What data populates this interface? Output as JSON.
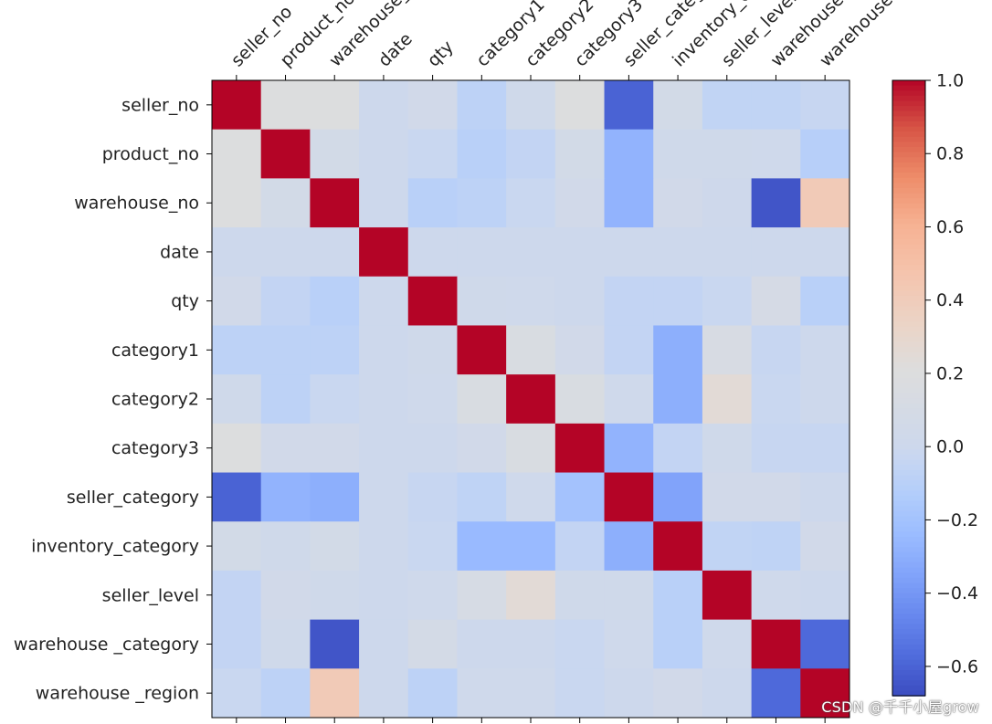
{
  "chart_data": {
    "type": "heatmap",
    "title": "",
    "variables": [
      "seller_no",
      "product_no",
      "warehouse_no",
      "date",
      "qty",
      "category1",
      "category2",
      "category3",
      "seller_category",
      "inventory_category",
      "seller_level",
      "warehouse _category",
      "warehouse _region"
    ],
    "matrix": [
      [
        1.0,
        0.2,
        0.2,
        0.0,
        0.05,
        -0.08,
        0.03,
        0.2,
        -0.6,
        0.07,
        -0.06,
        -0.06,
        -0.03
      ],
      [
        0.2,
        1.0,
        0.07,
        0.0,
        -0.02,
        -0.1,
        -0.05,
        0.07,
        -0.28,
        0.03,
        0.03,
        0.02,
        -0.11
      ],
      [
        0.2,
        0.07,
        1.0,
        0.0,
        -0.1,
        -0.08,
        -0.02,
        0.05,
        -0.28,
        0.05,
        0.01,
        -0.65,
        0.42
      ],
      [
        0.0,
        0.0,
        0.0,
        1.0,
        0.0,
        0.0,
        0.0,
        0.0,
        0.0,
        0.0,
        0.0,
        0.0,
        0.0
      ],
      [
        0.05,
        -0.05,
        -0.1,
        0.0,
        1.0,
        0.03,
        0.02,
        0.0,
        -0.05,
        -0.05,
        -0.02,
        0.1,
        -0.1
      ],
      [
        -0.08,
        -0.08,
        -0.08,
        0.0,
        0.03,
        1.0,
        0.15,
        0.05,
        -0.05,
        -0.3,
        0.13,
        -0.03,
        0.0
      ],
      [
        0.03,
        -0.08,
        -0.02,
        0.0,
        0.02,
        0.15,
        1.0,
        0.15,
        0.02,
        -0.3,
        0.25,
        -0.02,
        0.0
      ],
      [
        0.2,
        0.05,
        0.05,
        0.0,
        0.0,
        0.05,
        0.15,
        1.0,
        -0.28,
        -0.05,
        0.03,
        -0.03,
        -0.03
      ],
      [
        -0.6,
        -0.28,
        -0.3,
        0.0,
        -0.03,
        -0.07,
        0.02,
        -0.2,
        1.0,
        -0.35,
        0.05,
        0.05,
        0.0
      ],
      [
        0.07,
        0.03,
        0.07,
        0.0,
        -0.02,
        -0.25,
        -0.25,
        -0.05,
        -0.3,
        1.0,
        -0.06,
        -0.07,
        0.05
      ],
      [
        -0.05,
        0.05,
        0.03,
        0.0,
        0.02,
        0.12,
        0.25,
        0.03,
        0.03,
        -0.1,
        1.0,
        0.02,
        0.0
      ],
      [
        -0.05,
        0.03,
        -0.65,
        0.0,
        0.08,
        0.0,
        0.0,
        -0.02,
        0.02,
        -0.1,
        0.02,
        1.0,
        -0.58
      ],
      [
        -0.02,
        -0.08,
        0.42,
        0.0,
        -0.08,
        0.02,
        0.02,
        -0.02,
        0.0,
        0.05,
        0.0,
        -0.58,
        1.0
      ]
    ],
    "x_tick_labels": [
      "seller_no",
      "product_no",
      "warehouse_no",
      "date",
      "qty",
      "category1",
      "category2",
      "category3",
      "seller_category",
      "inventory_category",
      "seller_level",
      "warehouse _category",
      "warehouse _region"
    ],
    "y_tick_labels": [
      "seller_no",
      "product_no",
      "warehouse_no",
      "date",
      "qty",
      "category1",
      "category2",
      "category3",
      "seller_category",
      "inventory_category",
      "seller_level",
      "warehouse _category",
      "warehouse _region"
    ],
    "colormap": "coolwarm",
    "colorbar": {
      "vmin": -0.68,
      "vmax": 1.0,
      "ticks": [
        1.0,
        0.8,
        0.6,
        0.4,
        0.2,
        0.0,
        -0.2,
        -0.4,
        -0.6
      ],
      "tick_labels": [
        "1.0",
        "0.8",
        "0.6",
        "0.4",
        "0.2",
        "0.0",
        "−0.2",
        "−0.4",
        "−0.6"
      ]
    },
    "colors": {
      "cool_end": "#3b4cc0",
      "mid": "#dddddd",
      "warm_end": "#b40426",
      "frame": "#000000"
    }
  },
  "watermark": "CSDN @千千小屋grow"
}
